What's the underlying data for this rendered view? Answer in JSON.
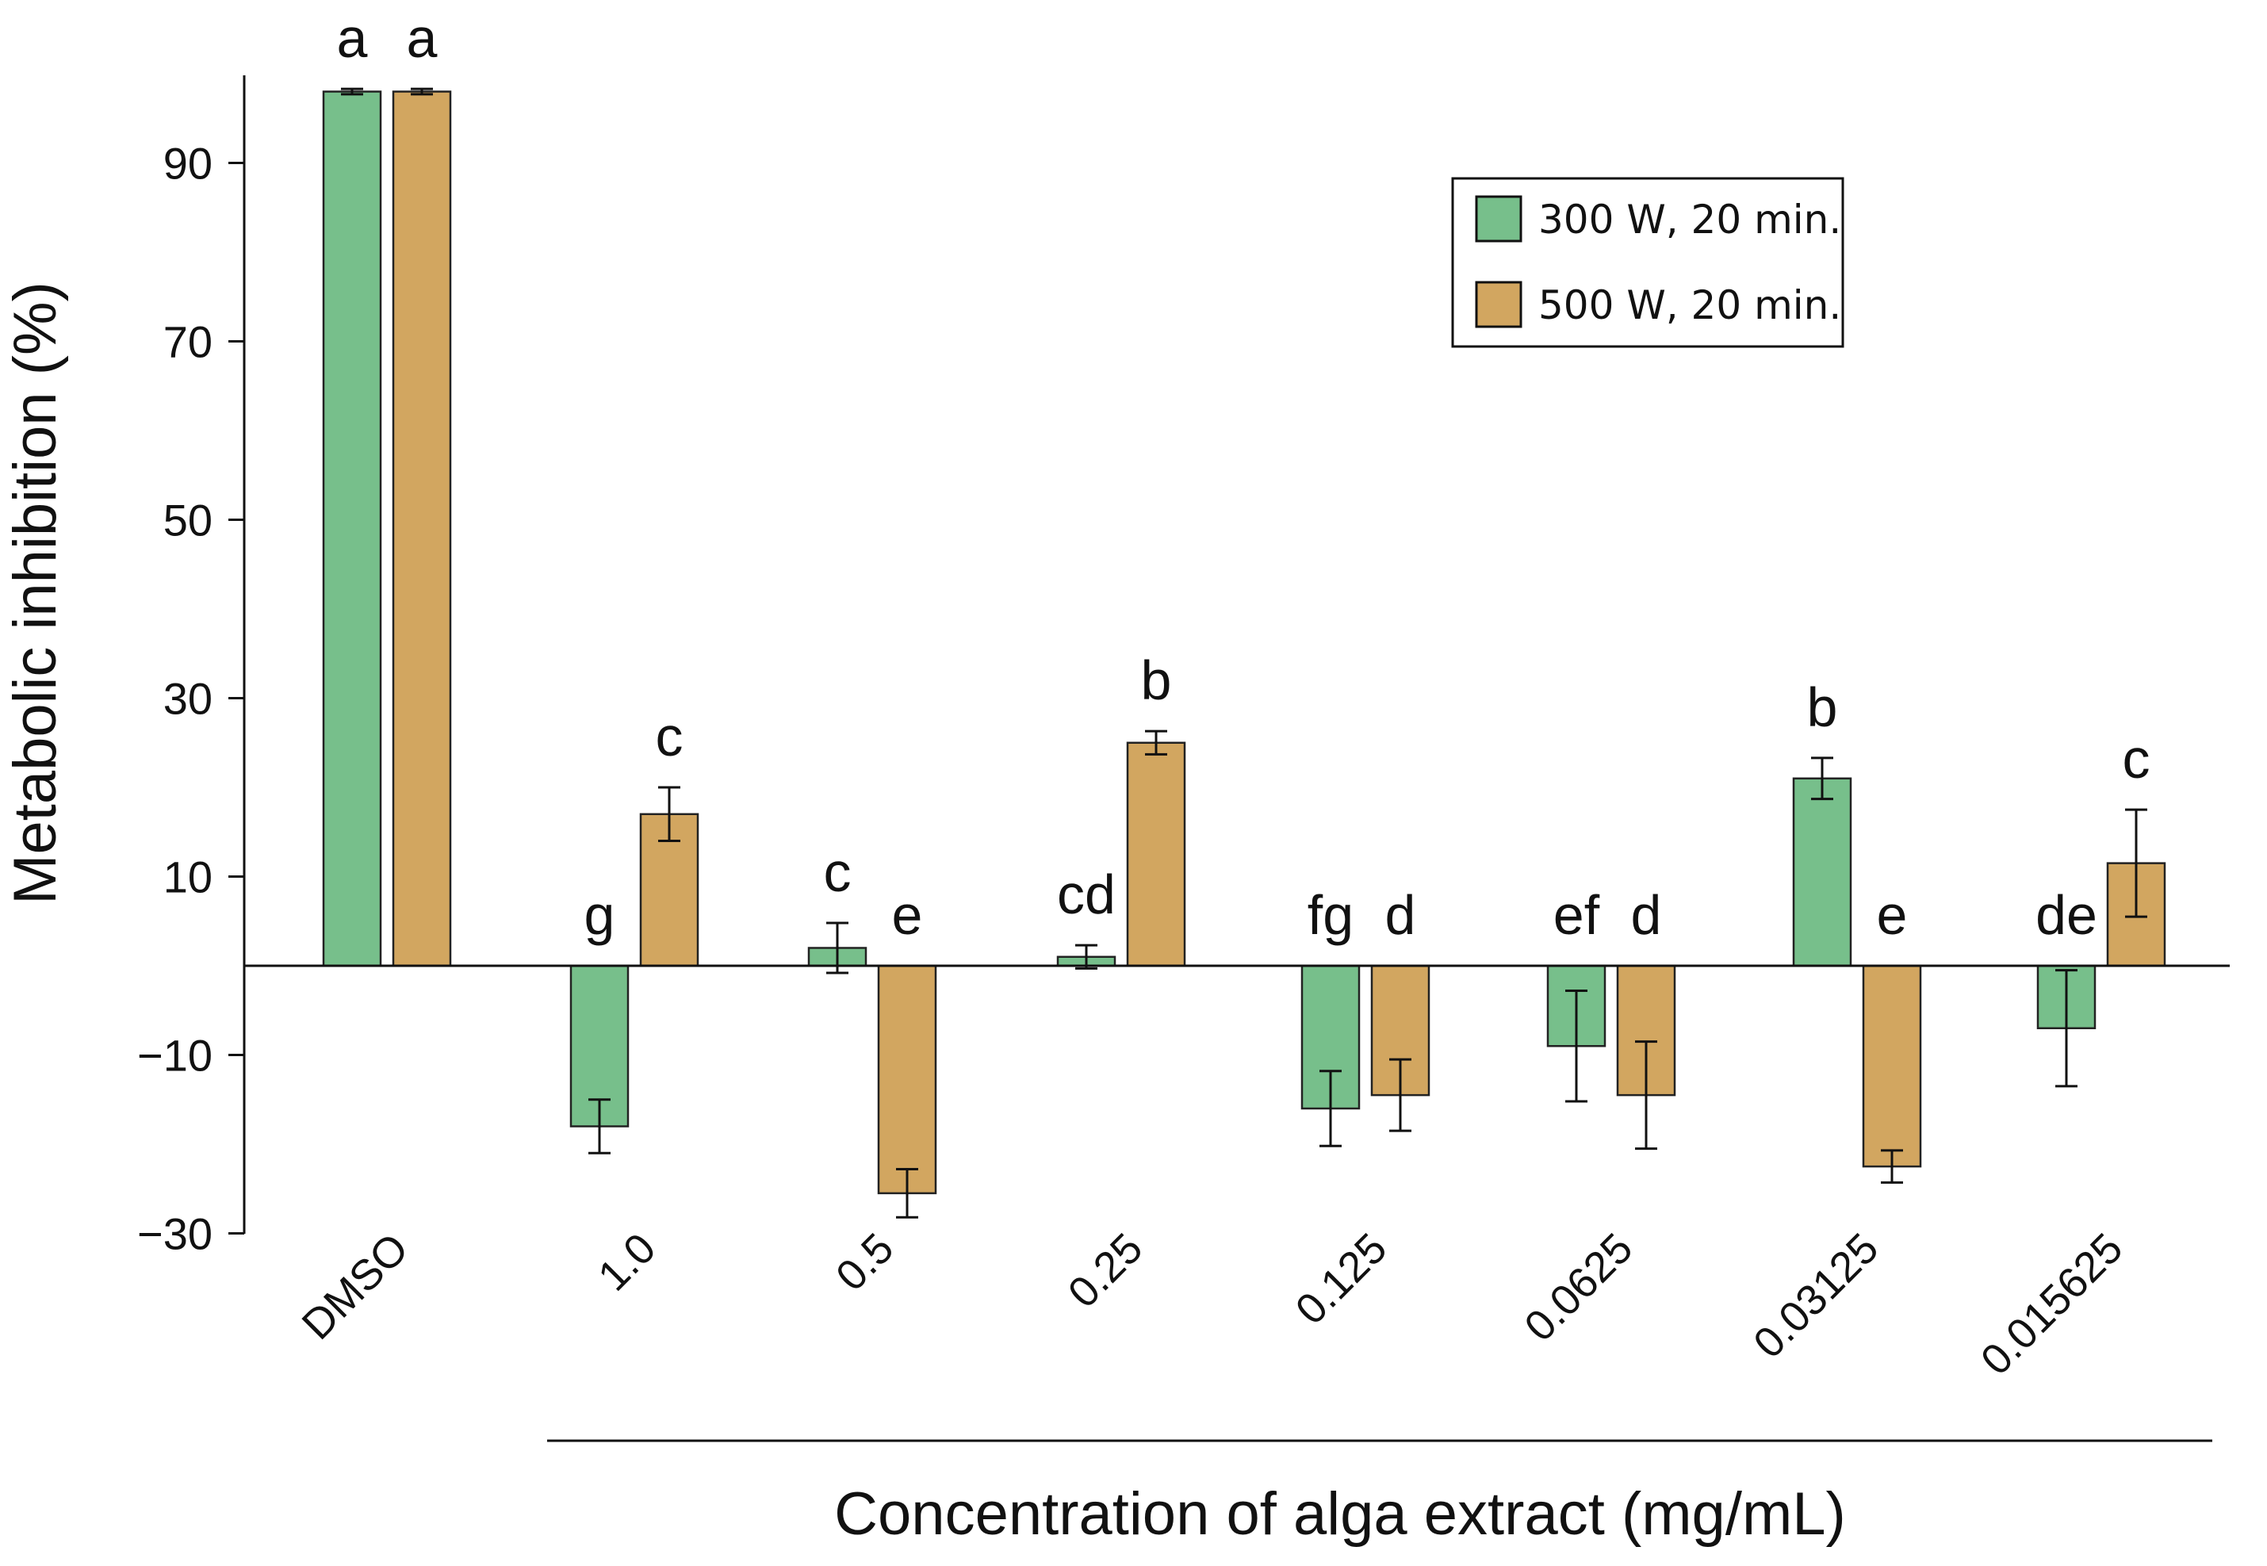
{
  "chart_data": {
    "type": "bar",
    "title": "",
    "ylabel": "Metabolic inhibition (%)",
    "xlabel": "Concentration of alga extract (mg/mL)",
    "ylim": [
      -30,
      100
    ],
    "yticks": [
      -30,
      -10,
      10,
      30,
      50,
      70,
      90
    ],
    "ytick_labels": [
      "−30",
      "−10",
      "10",
      "30",
      "50",
      "70",
      "90"
    ],
    "categories": [
      "DMSO",
      "1.0",
      "0.5",
      "0.25",
      "0.125",
      "0.0625",
      "0.03125",
      "0.015625"
    ],
    "series": [
      {
        "name": "300 W, 20 min.",
        "color": "#77bf8b",
        "values": [
          98,
          -18,
          2,
          1,
          -16,
          -9,
          21,
          -7
        ],
        "errors": [
          0.3,
          3,
          2.8,
          1.3,
          4.2,
          6.2,
          2.3,
          6.5
        ],
        "letters": [
          "a",
          "g",
          "c",
          "cd",
          "fg",
          "ef",
          "b",
          "de"
        ]
      },
      {
        "name": "500 W, 20 min.",
        "color": "#d2a660",
        "values": [
          98,
          17,
          -25.5,
          25,
          -14.5,
          -14.5,
          -22.5,
          11.5
        ],
        "errors": [
          0.3,
          3,
          2.7,
          1.3,
          4,
          6,
          1.8,
          6
        ],
        "letters": [
          "a",
          "c",
          "e",
          "b",
          "d",
          "d",
          "e",
          "c"
        ]
      }
    ],
    "legend_position": "top-right",
    "grid": false
  }
}
